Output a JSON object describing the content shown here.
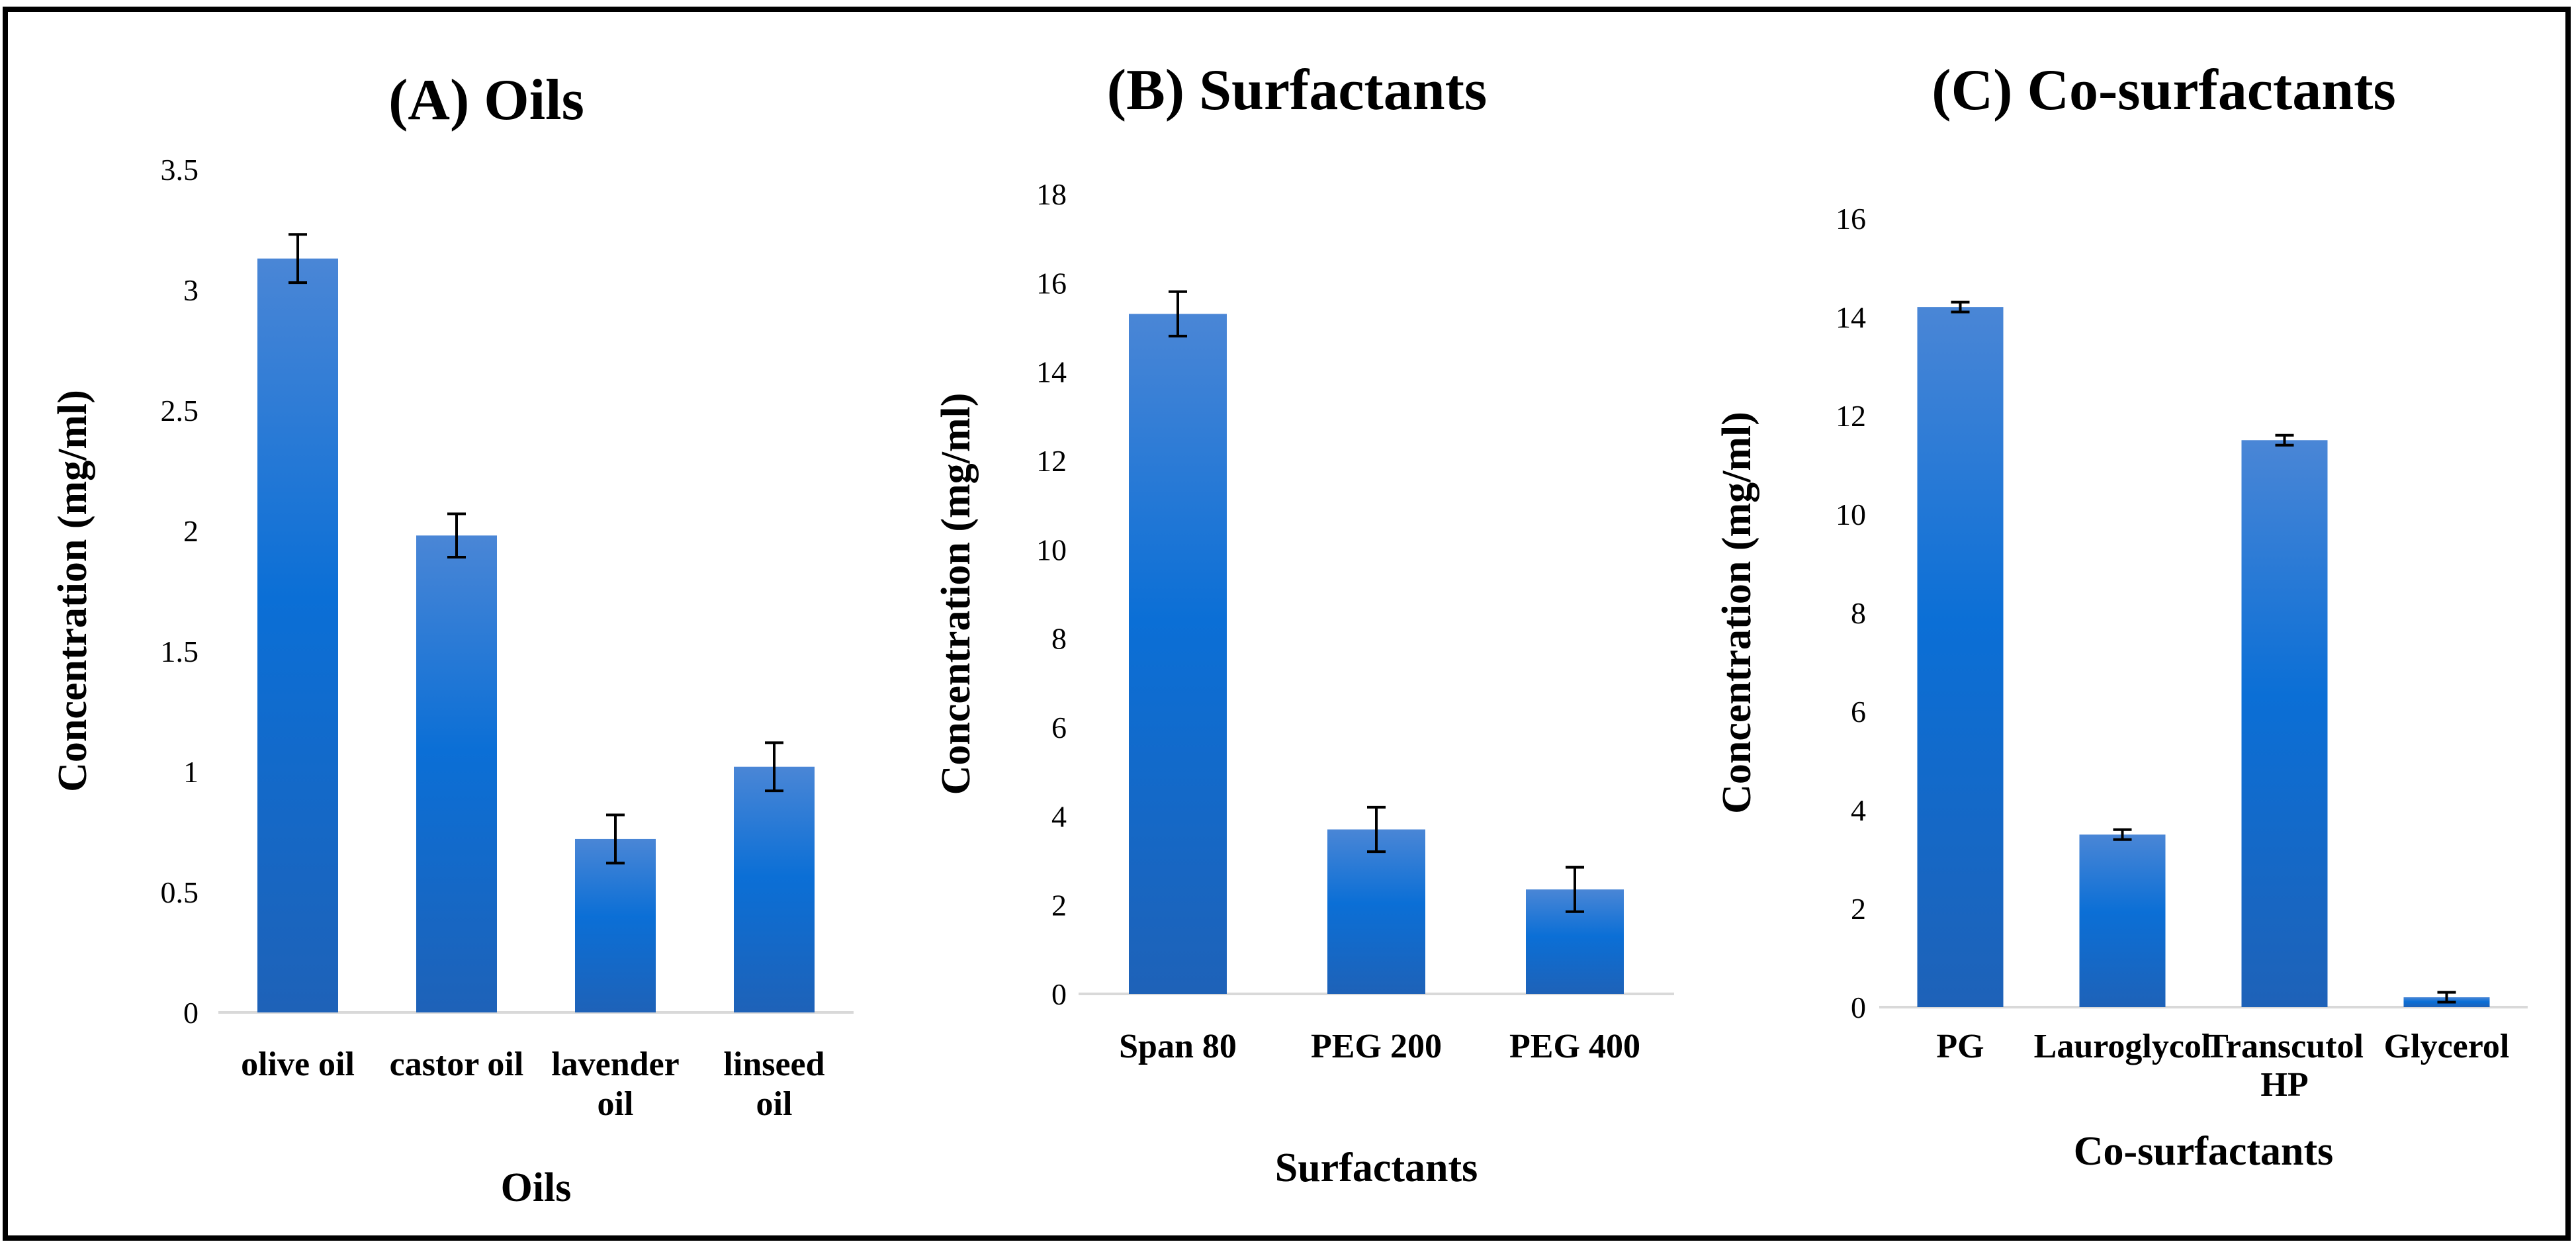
{
  "chart_data": [
    {
      "type": "bar",
      "title": "(A) Oils",
      "xlabel": "Oils",
      "ylabel": "Concentration  (mg/ml)",
      "categories": [
        [
          "olive oil"
        ],
        [
          "castor oil"
        ],
        [
          "lavender",
          "oil"
        ],
        [
          "linseed",
          "oil"
        ]
      ],
      "values": [
        3.13,
        1.98,
        0.72,
        1.02
      ],
      "errors": [
        0.1,
        0.09,
        0.1,
        0.1
      ],
      "ylim": [
        0,
        3.5
      ],
      "yticks": [
        0,
        0.5,
        1,
        1.5,
        2,
        2.5,
        3,
        3.5
      ],
      "ytick_labels": [
        "0",
        "0.5",
        "1",
        "1.5",
        "2",
        "2.5",
        "3",
        "3.5"
      ],
      "grid": false,
      "legend": "none"
    },
    {
      "type": "bar",
      "title": "(B) Surfactants",
      "xlabel": "Surfactants",
      "ylabel": "Concentration  (mg/ml)",
      "categories": [
        [
          "Span 80"
        ],
        [
          "PEG 200"
        ],
        [
          "PEG 400"
        ]
      ],
      "values": [
        15.3,
        3.7,
        2.35
      ],
      "errors": [
        0.5,
        0.5,
        0.5
      ],
      "ylim": [
        0,
        18
      ],
      "yticks": [
        0,
        2,
        4,
        6,
        8,
        10,
        12,
        14,
        16,
        18
      ],
      "ytick_labels": [
        "0",
        "2",
        "4",
        "6",
        "8",
        "10",
        "12",
        "14",
        "16",
        "18"
      ],
      "grid": false,
      "legend": "none"
    },
    {
      "type": "bar",
      "title": "(C) Co-surfactants",
      "xlabel": "Co-surfactants",
      "ylabel": "Concentration  (mg/ml)",
      "categories": [
        [
          "PG"
        ],
        [
          "Lauroglycol"
        ],
        [
          "Transcutol",
          "HP"
        ],
        [
          "Glycerol"
        ]
      ],
      "values": [
        14.2,
        3.5,
        11.5,
        0.2
      ],
      "errors": [
        0.1,
        0.1,
        0.1,
        0.1
      ],
      "ylim": [
        0,
        16
      ],
      "yticks": [
        0,
        2,
        4,
        6,
        8,
        10,
        12,
        14,
        16
      ],
      "ytick_labels": [
        "0",
        "2",
        "4",
        "6",
        "8",
        "10",
        "12",
        "14",
        "16"
      ],
      "grid": false,
      "legend": "none"
    }
  ],
  "colors": {
    "bar_top": "#4a86d6",
    "bar_mid": "#0b6fd6",
    "bar_bottom": "#1e62b8",
    "frame": "#000000",
    "baseline": "#d9d9d9"
  }
}
